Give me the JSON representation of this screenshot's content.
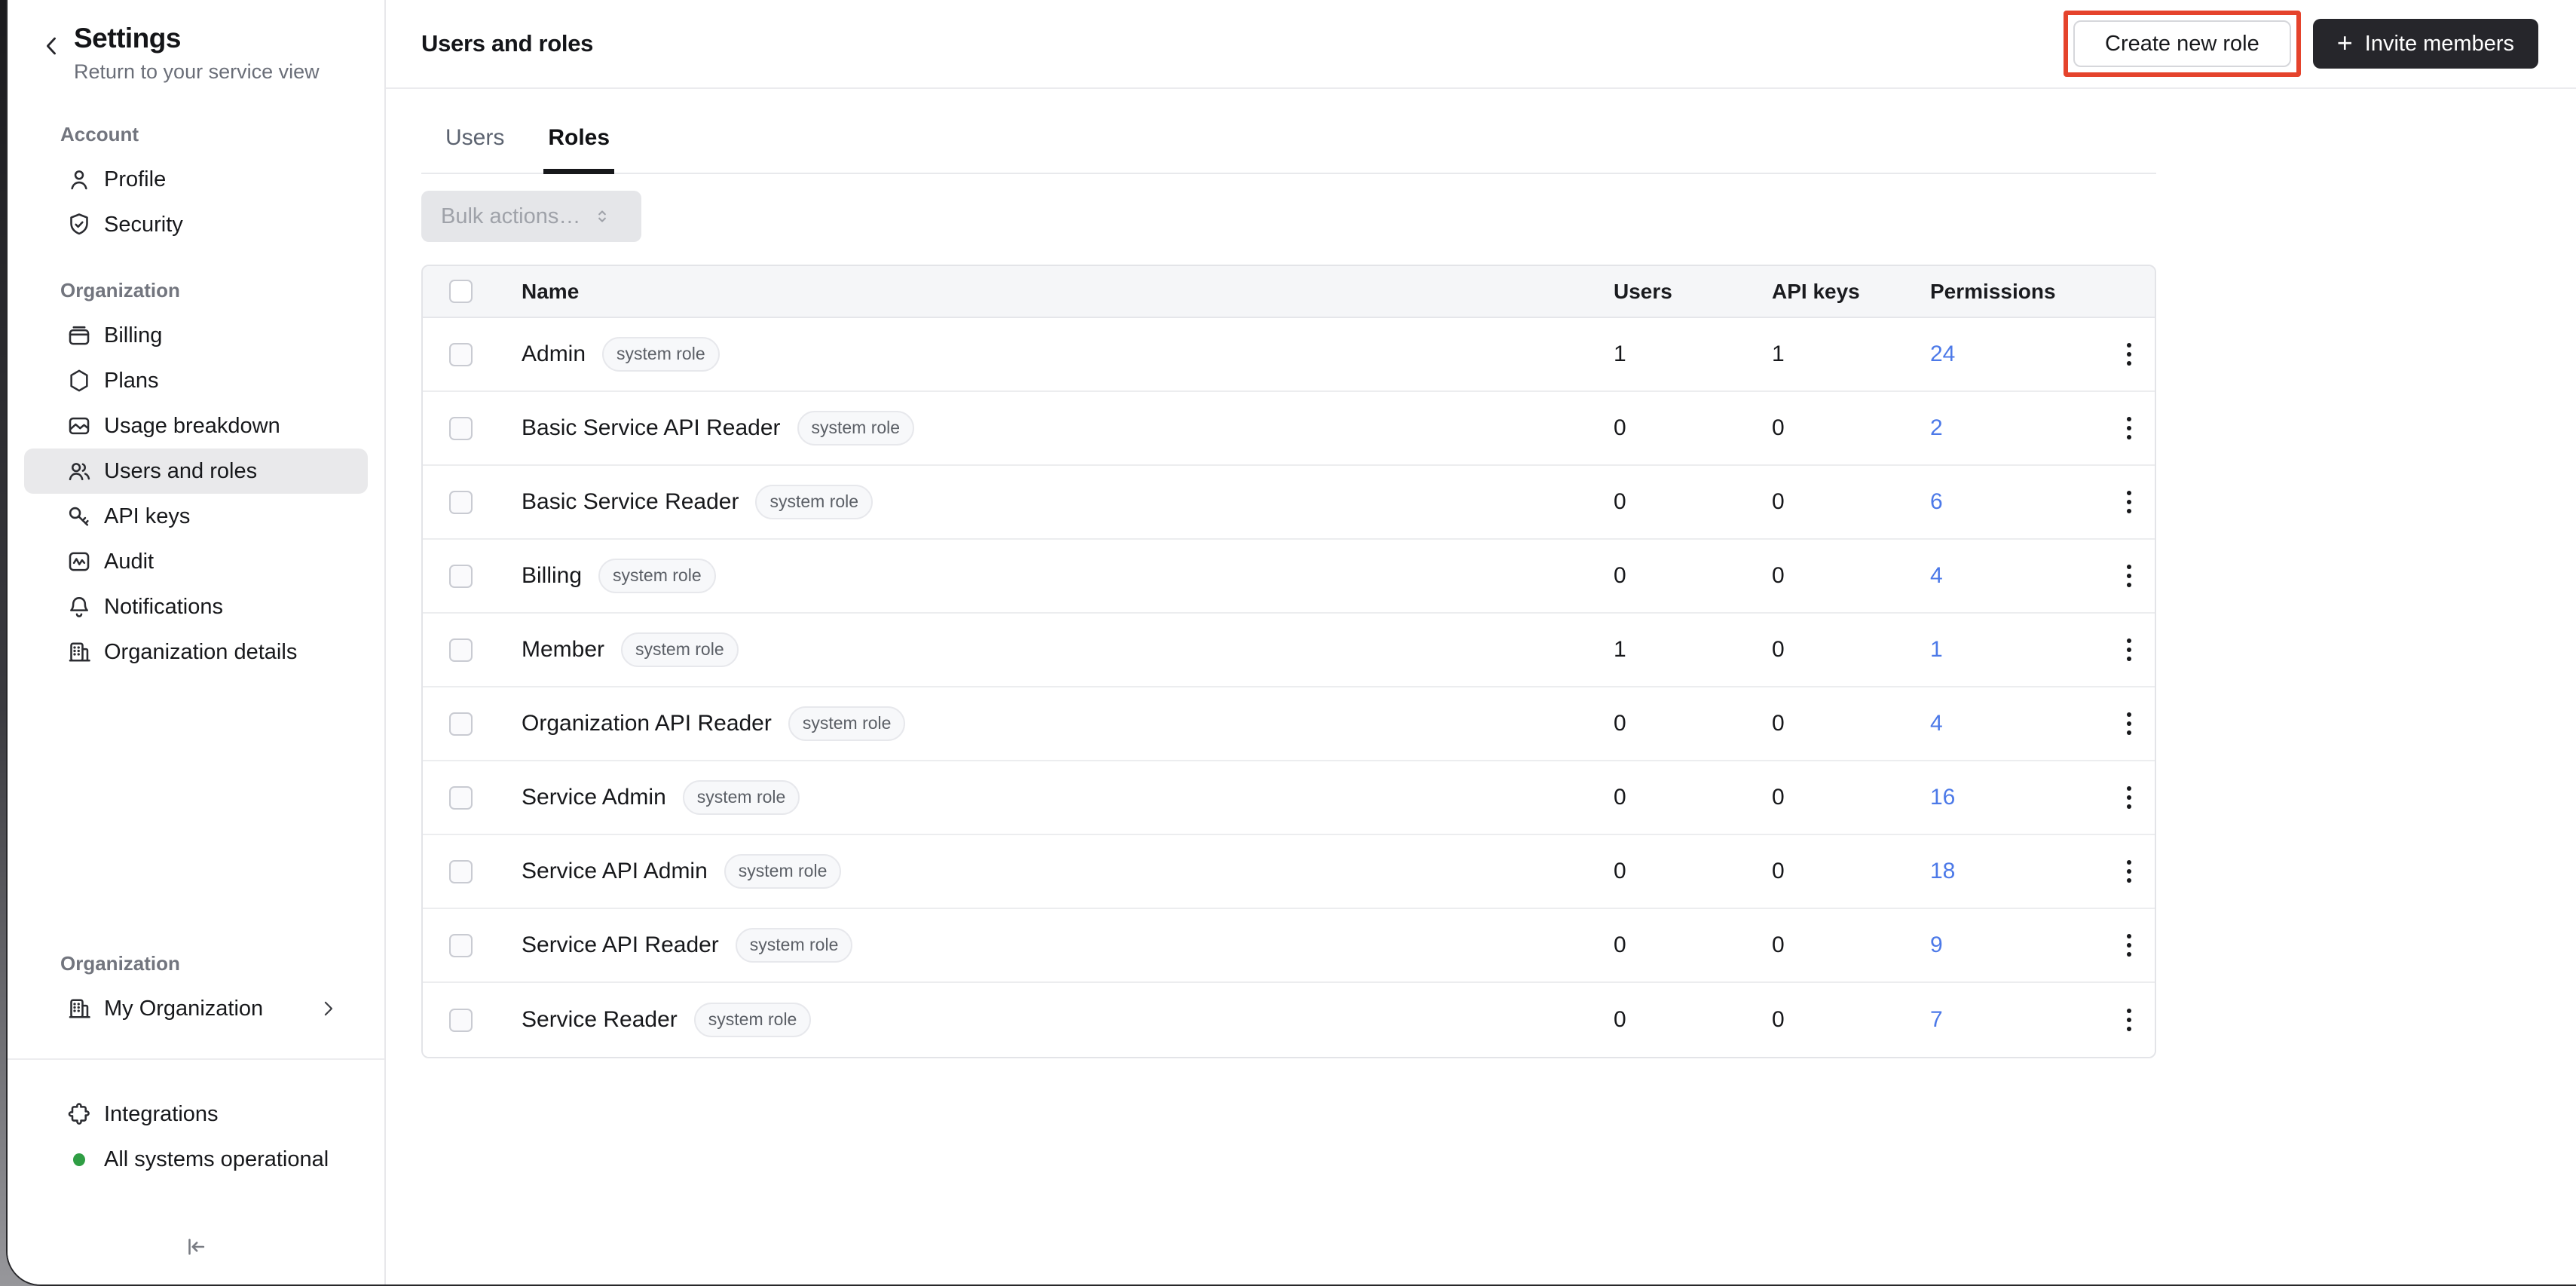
{
  "sidebar": {
    "back_icon": "chevron-left-icon",
    "title": "Settings",
    "subtitle": "Return to your service view",
    "sections": [
      {
        "header": "Account",
        "items": [
          {
            "label": "Profile",
            "icon": "person-icon"
          },
          {
            "label": "Security",
            "icon": "shield-check-icon"
          }
        ]
      },
      {
        "header": "Organization",
        "items": [
          {
            "label": "Billing",
            "icon": "wallet-icon"
          },
          {
            "label": "Plans",
            "icon": "hexagon-icon"
          },
          {
            "label": "Usage breakdown",
            "icon": "usage-chart-icon"
          },
          {
            "label": "Users and roles",
            "icon": "users-icon",
            "active": true
          },
          {
            "label": "API keys",
            "icon": "key-icon"
          },
          {
            "label": "Audit",
            "icon": "audit-activity-icon"
          },
          {
            "label": "Notifications",
            "icon": "bell-icon"
          },
          {
            "label": "Organization details",
            "icon": "building-icon"
          }
        ]
      },
      {
        "header": "Organization",
        "items": [
          {
            "label": "My Organization",
            "icon": "building-icon",
            "trailing": "chevron-right-icon"
          }
        ]
      }
    ],
    "footer_items": [
      {
        "label": "Integrations",
        "icon": "puzzle-icon"
      },
      {
        "label": "All systems operational",
        "icon": "status-dot",
        "status_color": "#2f9e44"
      }
    ],
    "collapse_icon": "collapse-sidebar-icon"
  },
  "header": {
    "title": "Users and roles",
    "create_role_label": "Create new role",
    "invite_label": "Invite members",
    "invite_plus": "+"
  },
  "tabs": [
    {
      "label": "Users",
      "active": false
    },
    {
      "label": "Roles",
      "active": true
    }
  ],
  "toolbar": {
    "bulk_actions_label": "Bulk actions…"
  },
  "table": {
    "columns": [
      "Name",
      "Users",
      "API keys",
      "Permissions"
    ],
    "badge_label": "system role",
    "rows": [
      {
        "name": "Admin",
        "users": "1",
        "api_keys": "1",
        "permissions": "24"
      },
      {
        "name": "Basic Service API Reader",
        "users": "0",
        "api_keys": "0",
        "permissions": "2"
      },
      {
        "name": "Basic Service Reader",
        "users": "0",
        "api_keys": "0",
        "permissions": "6"
      },
      {
        "name": "Billing",
        "users": "0",
        "api_keys": "0",
        "permissions": "4"
      },
      {
        "name": "Member",
        "users": "1",
        "api_keys": "0",
        "permissions": "1"
      },
      {
        "name": "Organization API Reader",
        "users": "0",
        "api_keys": "0",
        "permissions": "4"
      },
      {
        "name": "Service Admin",
        "users": "0",
        "api_keys": "0",
        "permissions": "16"
      },
      {
        "name": "Service API Admin",
        "users": "0",
        "api_keys": "0",
        "permissions": "18"
      },
      {
        "name": "Service API Reader",
        "users": "0",
        "api_keys": "0",
        "permissions": "9"
      },
      {
        "name": "Service Reader",
        "users": "0",
        "api_keys": "0",
        "permissions": "7"
      }
    ]
  },
  "colors": {
    "permissions_link": "#4c79e8",
    "annotation_red": "#e5432c",
    "invite_button_bg": "#26262b",
    "status_green": "#2f9e44",
    "active_item_bg": "#e9e9eb"
  }
}
